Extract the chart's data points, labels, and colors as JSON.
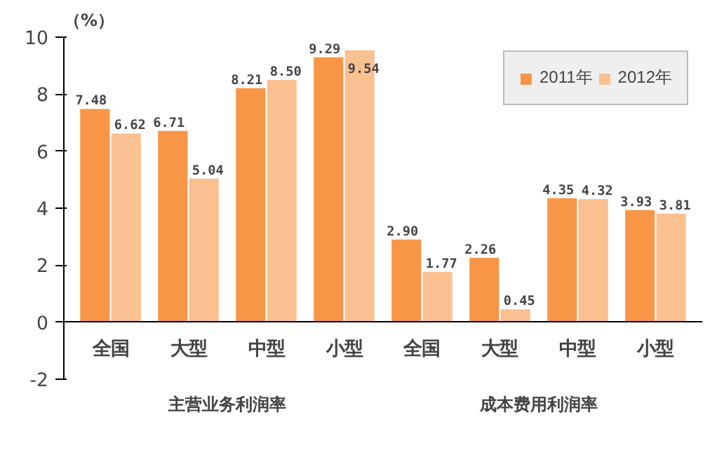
{
  "chart_data": {
    "type": "bar",
    "ylabel": "（%）",
    "categories": [
      "全国",
      "大型",
      "中型",
      "小型",
      "全国",
      "大型",
      "中型",
      "小型"
    ],
    "series": [
      {
        "name": "2011年",
        "color": "#f79646",
        "values": [
          7.48,
          6.71,
          8.21,
          9.29,
          2.9,
          2.26,
          4.35,
          3.93
        ],
        "value_labels": [
          "7.48",
          "6.71",
          "8.21",
          "9.29",
          "2.90",
          "2.26",
          "4.35",
          "3.93"
        ]
      },
      {
        "name": "2012年",
        "color": "#fac090",
        "values": [
          6.62,
          5.04,
          8.5,
          9.54,
          1.77,
          0.45,
          4.32,
          3.81
        ],
        "value_labels": [
          "6.62",
          "5.04",
          "8.50",
          "9.54",
          "1.77",
          "0.45",
          "4.32",
          "3.81"
        ]
      }
    ],
    "ylim": [
      -2,
      10
    ],
    "yticks": [
      -2,
      0,
      2,
      4,
      6,
      8,
      10
    ],
    "grid": false,
    "legend": "top right",
    "annotations": [
      "主营业务利润率",
      "成本费用利润率"
    ]
  }
}
